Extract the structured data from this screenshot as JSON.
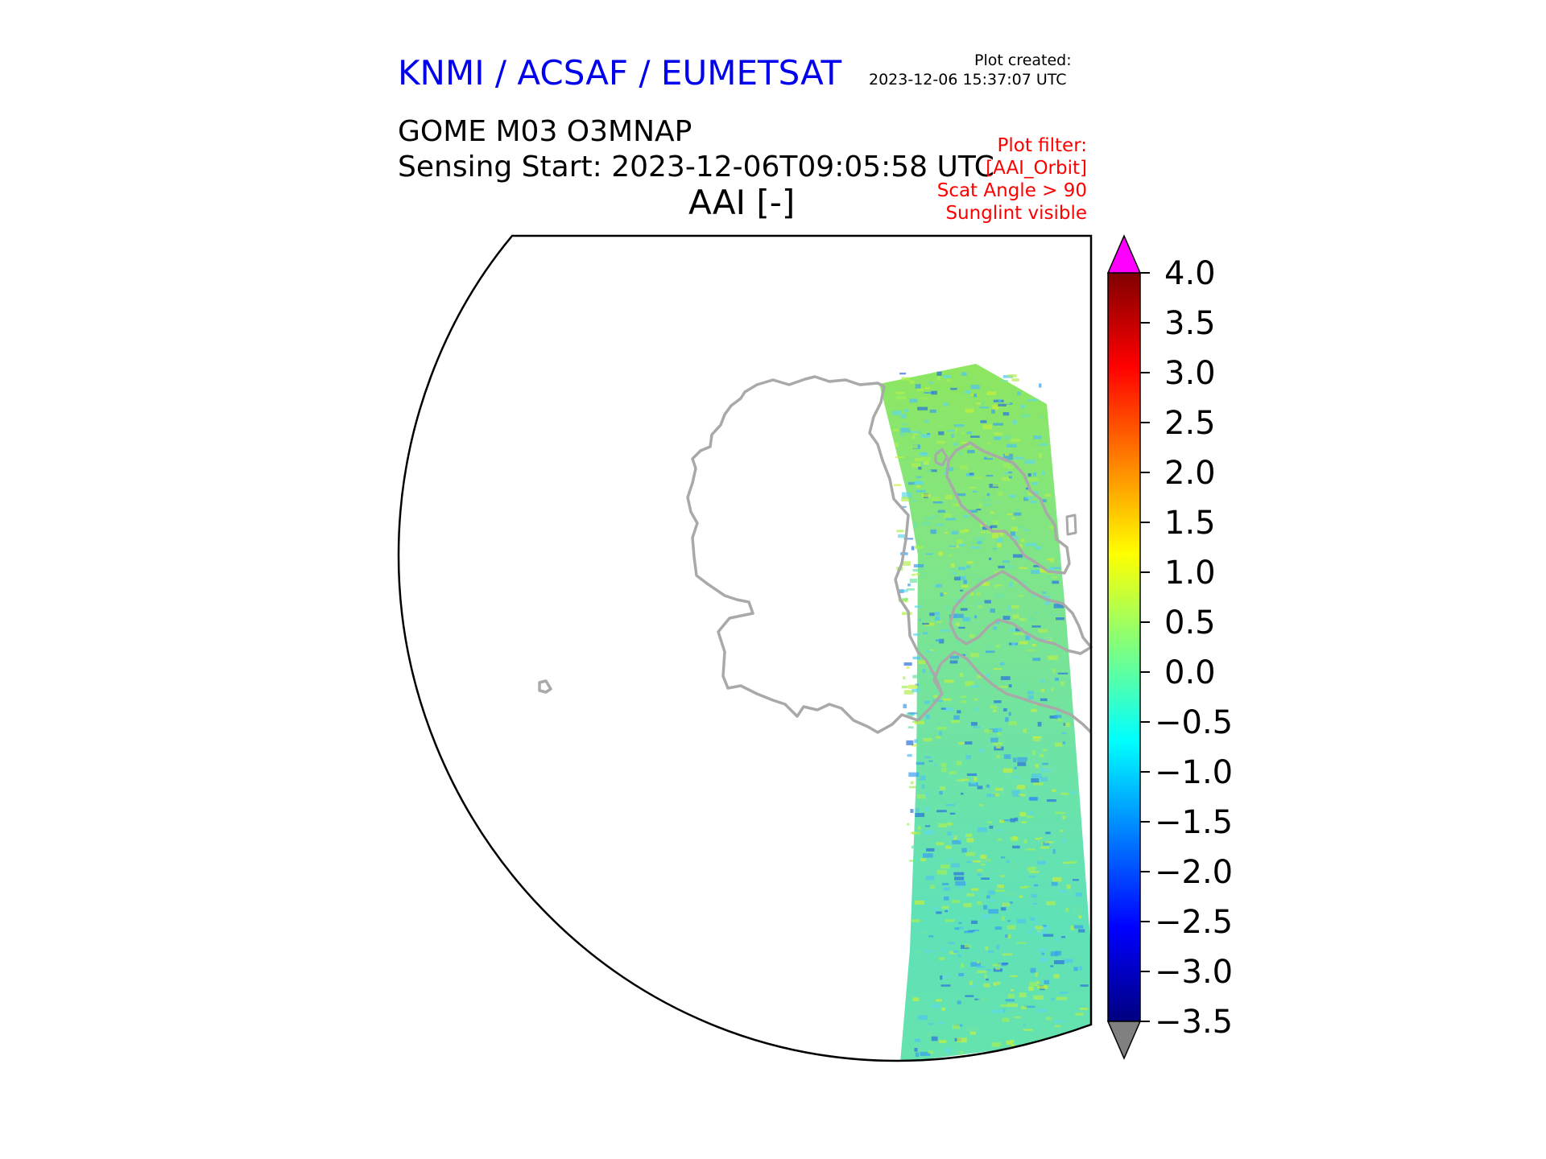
{
  "header": {
    "agency": "KNMI / ACSAF / EUMETSAT",
    "plot_created_label": "Plot created:",
    "plot_created_time": "2023-12-06 15:37:07 UTC",
    "product": "GOME M03 O3MNAP",
    "sensing_start": "Sensing Start: 2023-12-06T09:05:58 UTC",
    "variable_title": "AAI [-]"
  },
  "filters": [
    "Plot filter:",
    "[AAI_Orbit]",
    "Scat Angle > 90",
    "Sunglint visible"
  ],
  "colorbar": {
    "ticks": [
      "4.0",
      "3.5",
      "3.0",
      "2.5",
      "2.0",
      "1.5",
      "1.0",
      "0.5",
      "0.0",
      "−0.5",
      "−1.0",
      "−1.5",
      "−2.0",
      "−2.5",
      "−3.0",
      "−3.5"
    ],
    "min": -3.5,
    "max": 4.0,
    "over_color": "#ff00ff",
    "under_color": "#808080"
  },
  "map": {
    "coastline_color": "#a9a9a9",
    "swath_dominant_value_range": [
      -1.5,
      1.5
    ]
  }
}
